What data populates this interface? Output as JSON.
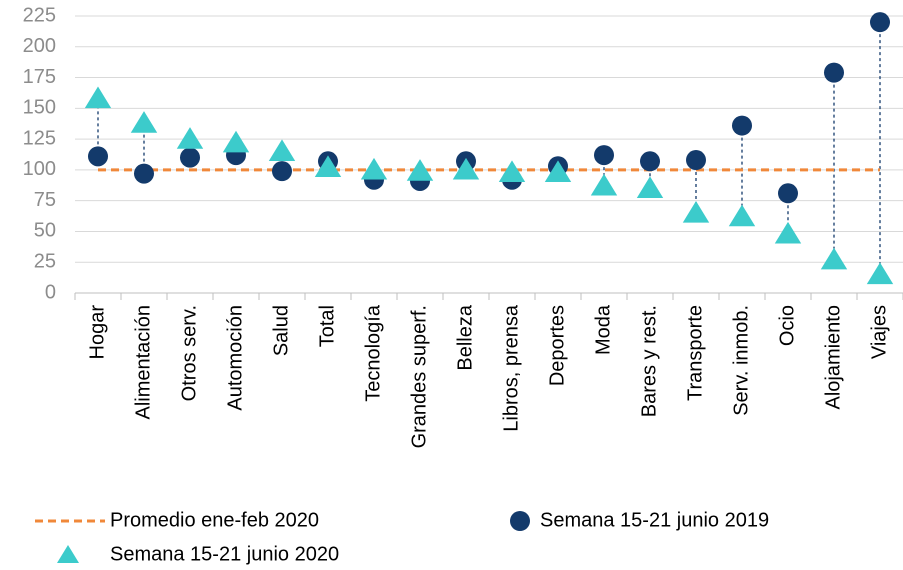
{
  "chart_data": {
    "type": "dot",
    "categories": [
      "Hogar",
      "Alimentación",
      "Otros serv.",
      "Automoción",
      "Salud",
      "Total",
      "Tecnología",
      "Grandes superf.",
      "Belleza",
      "Libros, prensa",
      "Deportes",
      "Moda",
      "Bares y rest.",
      "Transporte",
      "Serv. inmob.",
      "Ocio",
      "Alojamiento",
      "Viajes"
    ],
    "series": [
      {
        "name": "Promedio ene-feb 2020",
        "color": "#f0883a",
        "marker": "dashed-line",
        "values": [
          100,
          100,
          100,
          100,
          100,
          100,
          100,
          100,
          100,
          100,
          100,
          100,
          100,
          100,
          100,
          100,
          100,
          100
        ]
      },
      {
        "name": "Semana 15-21 junio 2019",
        "color": "#133a6b",
        "marker": "circle",
        "values": [
          111,
          97,
          110,
          112,
          99,
          107,
          92,
          91,
          107,
          92,
          103,
          112,
          107,
          108,
          136,
          81,
          179,
          220
        ]
      },
      {
        "name": "Semana 15-21 junio 2020",
        "color": "#3ccbcb",
        "marker": "triangle",
        "values": [
          158,
          138,
          125,
          122,
          115,
          102,
          100,
          99,
          100,
          98,
          98,
          87,
          85,
          65,
          62,
          48,
          27,
          15
        ]
      }
    ],
    "connectors": true,
    "ylim": [
      0,
      225
    ],
    "yticks": [
      0,
      25,
      50,
      75,
      100,
      125,
      150,
      175,
      200,
      225
    ],
    "grid": true
  }
}
